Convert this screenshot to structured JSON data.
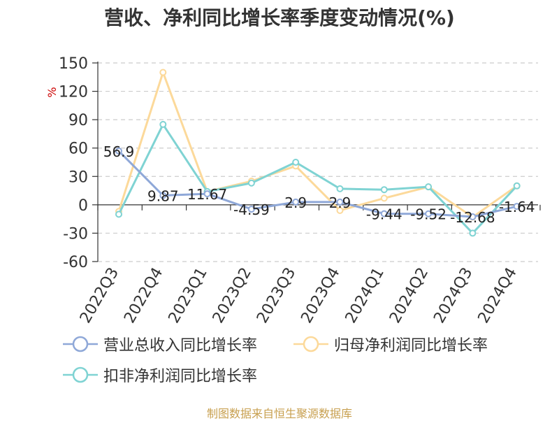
{
  "title": "营收、净利同比增长率季度变动情况(%)",
  "source": "制图数据来自恒生聚源数据库",
  "colors": {
    "revenue": "#8fa8d8",
    "net_profit": "#fcd99a",
    "deducted_net_profit": "#7fd3d3",
    "unit_label": "#cc0000",
    "grid": "#cccccc",
    "axis": "#333333"
  },
  "chart_data": {
    "type": "line",
    "title": "营收、净利同比增长率季度变动情况(%)",
    "ylabel": "%",
    "ylim": [
      -60,
      150
    ],
    "yticks": [
      -60,
      -30,
      0,
      30,
      60,
      90,
      120,
      150
    ],
    "grid": true,
    "legend_position": "bottom",
    "categories": [
      "2022Q3",
      "2022Q4",
      "2023Q1",
      "2023Q2",
      "2023Q3",
      "2023Q4",
      "2024Q1",
      "2024Q2",
      "2024Q3",
      "2024Q4"
    ],
    "series": [
      {
        "name": "营业总收入同比增长率",
        "color_key": "revenue",
        "values": [
          56.9,
          9.87,
          11.67,
          -4.59,
          2.9,
          2.9,
          -9.44,
          -9.52,
          -12.68,
          -1.64
        ],
        "labels": [
          "56.9",
          "9.87",
          "11.67",
          "-4.59",
          "2.9",
          "2.9",
          "-9.44",
          "-9.52",
          "-12.68",
          "-1.64"
        ]
      },
      {
        "name": "归母净利润同比增长率",
        "color_key": "net_profit",
        "values": [
          -7,
          140,
          14,
          25,
          41,
          -6,
          7,
          19,
          -13,
          20
        ]
      },
      {
        "name": "扣非净利润同比增长率",
        "color_key": "deducted_net_profit",
        "values": [
          -10,
          85,
          14,
          23,
          45,
          17,
          16,
          19,
          -30,
          20
        ]
      }
    ]
  }
}
